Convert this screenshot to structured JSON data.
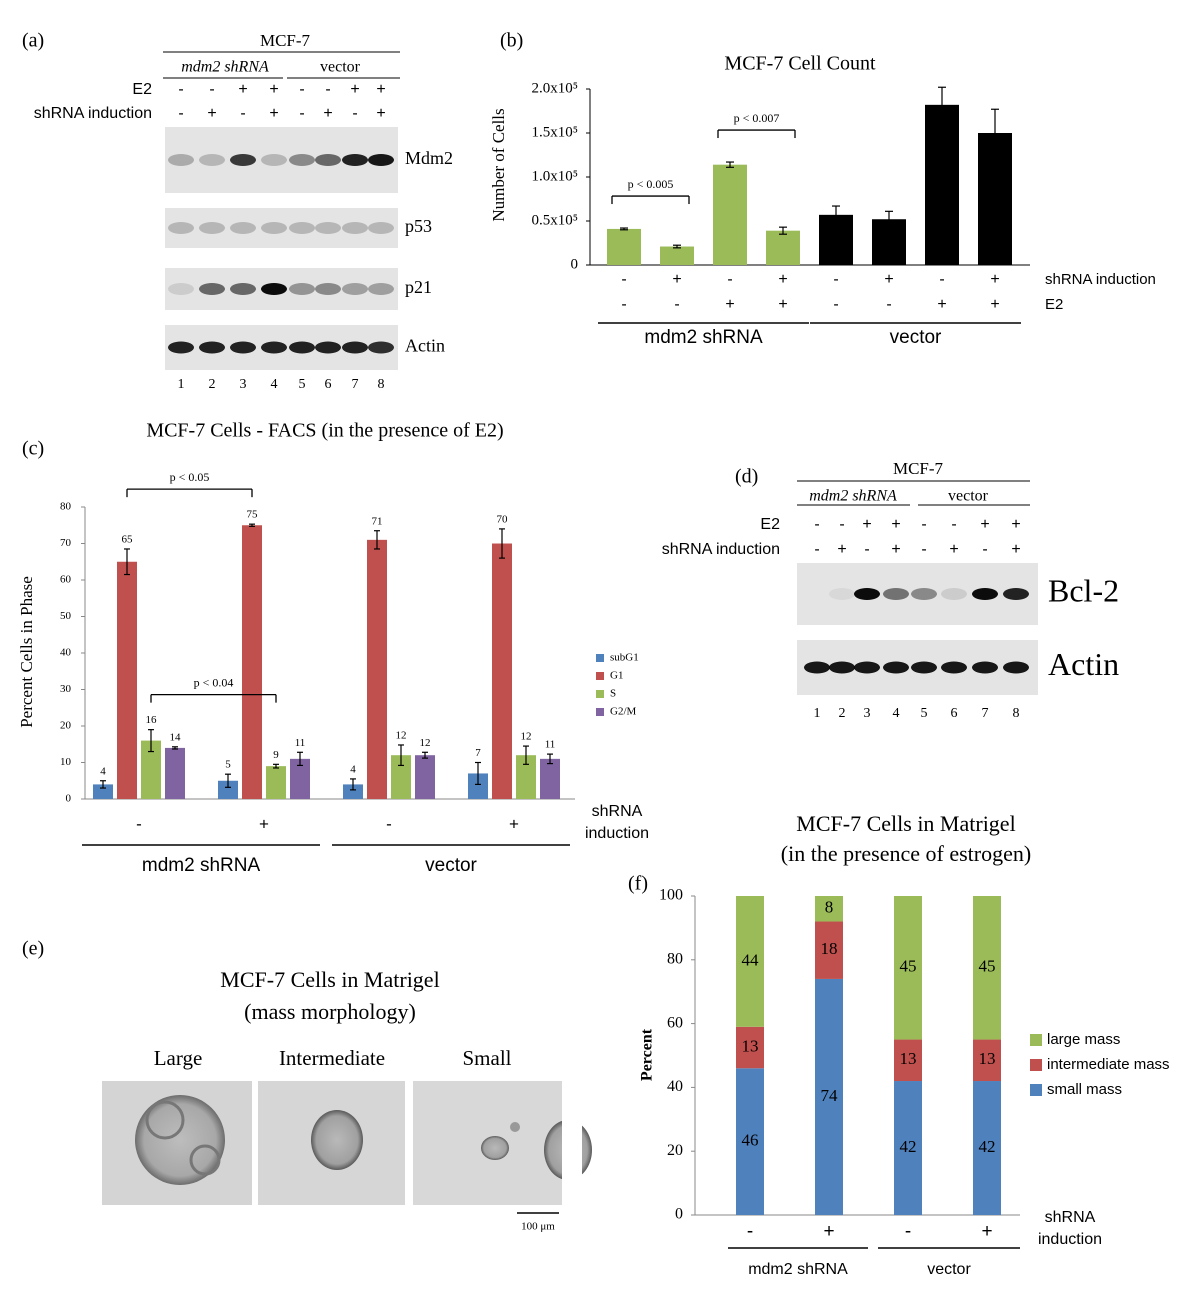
{
  "chart_data": [
    {
      "type": "bar",
      "panel": "(b)",
      "title": "MCF-7 Cell Count",
      "ylabel": "Number of Cells",
      "values": [
        41000,
        21000,
        114000,
        39000,
        57000,
        52000,
        182000,
        150000
      ],
      "errors": [
        1000,
        1500,
        3000,
        4000,
        10000,
        9000,
        20000,
        27000
      ],
      "colors": [
        "#9bbb59",
        "#9bbb59",
        "#9bbb59",
        "#9bbb59",
        "#000000",
        "#000000",
        "#000000",
        "#000000"
      ],
      "ylim": [
        0,
        200000
      ],
      "yticks": [
        0,
        {
          "value": 50000,
          "label": "0.5x10⁵"
        },
        {
          "value": 100000,
          "label": "1.0x10⁵"
        },
        {
          "value": 150000,
          "label": "1.5x10⁵"
        },
        {
          "value": 200000,
          "label": "2.0x10⁵"
        }
      ],
      "rows": [
        {
          "label": "shRNA induction",
          "values": [
            "-",
            "+",
            "-",
            "+",
            "-",
            "+",
            "-",
            "+"
          ]
        },
        {
          "label": "E2",
          "values": [
            "-",
            "-",
            "+",
            "+",
            "-",
            "-",
            "+",
            "+"
          ]
        }
      ],
      "groups": [
        "mdm2 shRNA",
        "vector"
      ],
      "annotations": [
        "p < 0.005",
        "p < 0.007"
      ]
    },
    {
      "type": "grouped_bar",
      "panel": "(c)",
      "title": "MCF-7 Cells - FACS (in the presence of E2)",
      "ylabel": "Percent Cells in Phase",
      "categories": [
        "-",
        "+",
        "-",
        "+"
      ],
      "row_label": [
        "shRNA",
        "induction"
      ],
      "series": [
        {
          "name": "subG1",
          "color": "#4f81bd",
          "values": [
            4,
            5,
            4,
            7
          ],
          "errors": [
            1,
            1.8,
            1.5,
            3
          ]
        },
        {
          "name": "G1",
          "color": "#c0504d",
          "values": [
            65,
            75,
            71,
            70
          ],
          "errors": [
            3.5,
            0.3,
            2.5,
            4
          ]
        },
        {
          "name": "S",
          "color": "#9bbb59",
          "values": [
            16,
            9,
            12,
            12
          ],
          "errors": [
            3,
            0.5,
            2.8,
            2.5
          ]
        },
        {
          "name": "G2/M",
          "color": "#8064a2",
          "values": [
            14,
            11,
            12,
            11
          ],
          "errors": [
            0.3,
            1.8,
            0.8,
            1.3
          ]
        }
      ],
      "ylim": [
        0,
        80
      ],
      "yticks": [
        0,
        10,
        20,
        30,
        40,
        50,
        60,
        70,
        80
      ],
      "groups": [
        "mdm2 shRNA",
        "vector"
      ],
      "annotations": [
        "p < 0.05",
        "p < 0.04"
      ]
    },
    {
      "type": "stacked_bar",
      "panel": "(f)",
      "title": [
        "MCF-7 Cells in Matrigel",
        "(in the presence of estrogen)"
      ],
      "ylabel": "Percent",
      "categories": [
        "-",
        "+",
        "-",
        "+"
      ],
      "row_label": [
        "shRNA",
        "induction"
      ],
      "series": [
        {
          "name": "small mass",
          "color": "#4f81bd",
          "values": [
            46,
            74,
            42,
            42
          ]
        },
        {
          "name": "intermediate mass",
          "color": "#c0504d",
          "values": [
            13,
            18,
            13,
            13
          ]
        },
        {
          "name": "large mass",
          "color": "#9bbb59",
          "values": [
            44,
            8,
            45,
            45
          ]
        }
      ],
      "ylim": [
        0,
        100
      ],
      "yticks": [
        0,
        20,
        40,
        60,
        80,
        100
      ],
      "groups": [
        "mdm2 shRNA",
        "vector"
      ]
    }
  ],
  "blot_a": {
    "panel": "(a)",
    "cell_line": "MCF-7",
    "groups": [
      "mdm2 shRNA",
      "vector"
    ],
    "rows": [
      {
        "label": "E2",
        "values": [
          "-",
          "-",
          "+",
          "+",
          "-",
          "-",
          "+",
          "+"
        ]
      },
      {
        "label": "shRNA induction",
        "values": [
          "-",
          "+",
          "-",
          "+",
          "-",
          "+",
          "-",
          "+"
        ]
      }
    ],
    "bands": [
      "Mdm2",
      "p53",
      "p21",
      "Actin"
    ],
    "lanes": [
      1,
      2,
      3,
      4,
      5,
      6,
      7,
      8
    ]
  },
  "blot_d": {
    "panel": "(d)",
    "cell_line": "MCF-7",
    "groups": [
      "mdm2 shRNA",
      "vector"
    ],
    "rows": [
      {
        "label": "E2",
        "values": [
          "-",
          "-",
          "+",
          "+",
          "-",
          "-",
          "+",
          "+"
        ]
      },
      {
        "label": "shRNA induction",
        "values": [
          "-",
          "+",
          "-",
          "+",
          "-",
          "+",
          "-",
          "+"
        ]
      }
    ],
    "bands": [
      "Bcl-2",
      "Actin"
    ],
    "lanes": [
      1,
      2,
      3,
      4,
      5,
      6,
      7,
      8
    ]
  },
  "panel_e": {
    "panel": "(e)",
    "title": [
      "MCF-7 Cells in Matrigel",
      "(mass morphology)"
    ],
    "images": [
      "Large",
      "Intermediate",
      "Small"
    ],
    "scale_bar": "100 μm"
  }
}
